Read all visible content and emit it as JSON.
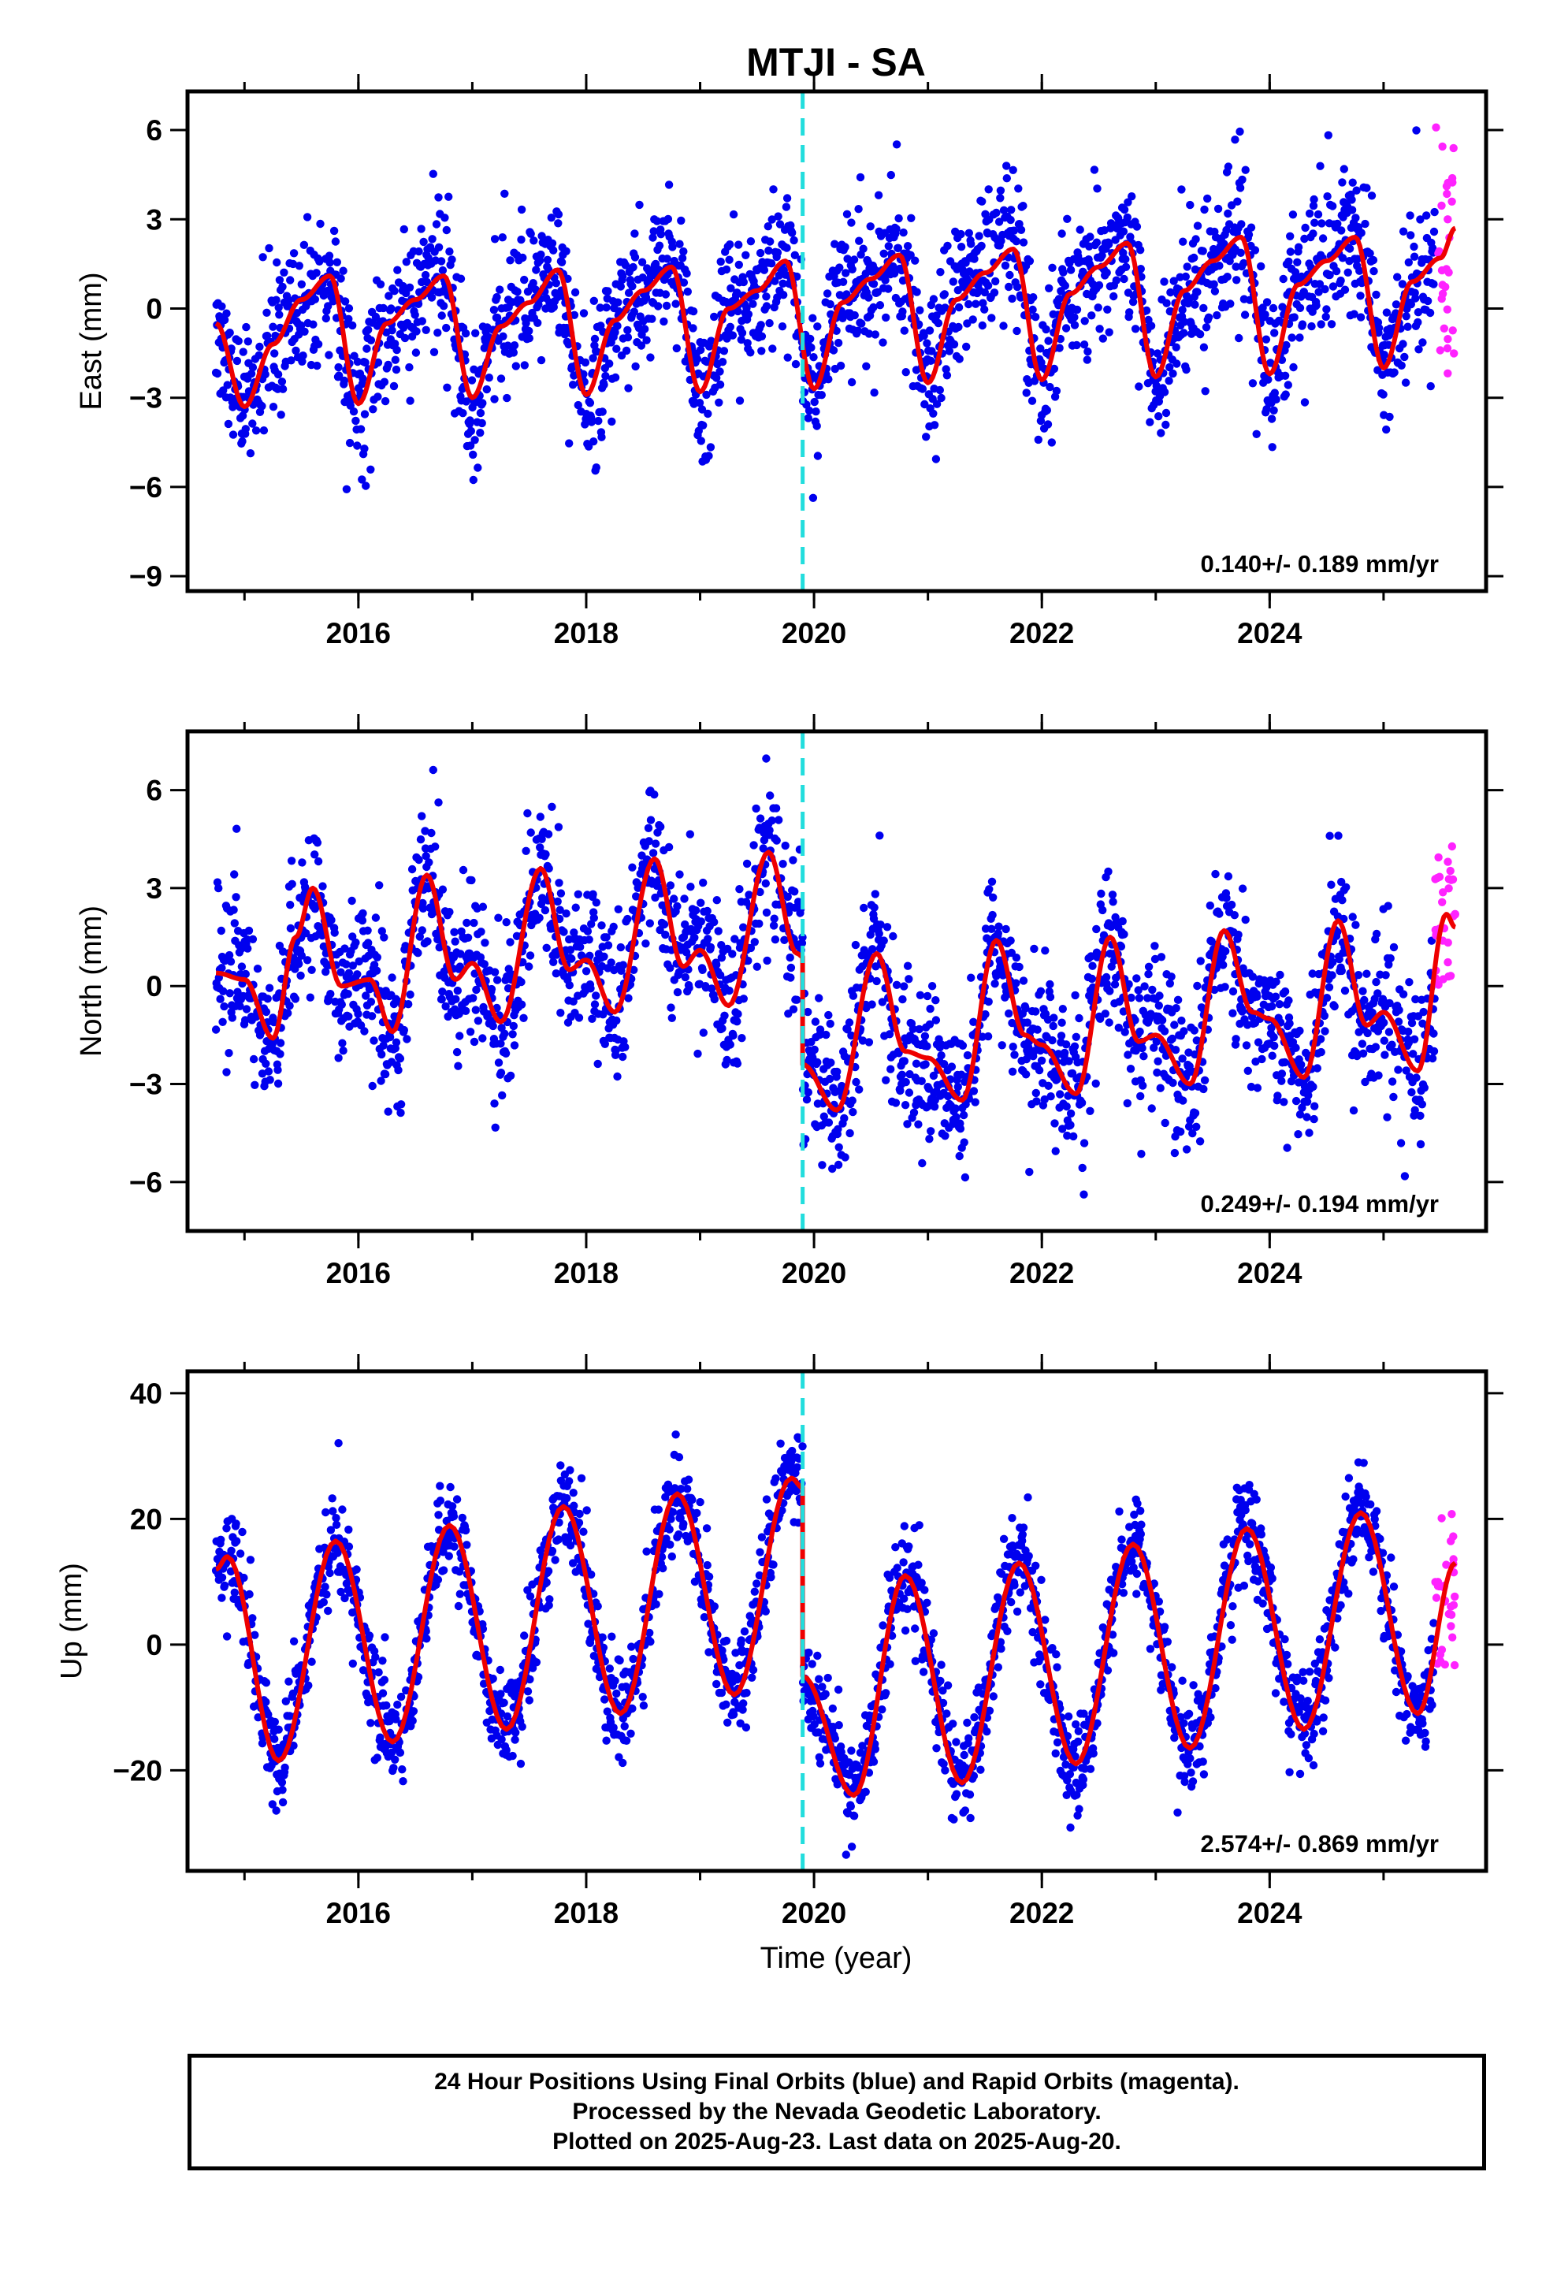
{
  "title": "MTJI - SA",
  "xlabel": "Time (year)",
  "caption": {
    "line1": "24 Hour Positions Using Final Orbits (blue) and Rapid Orbits (magenta).",
    "line2": "Processed by the Nevada Geodetic Laboratory.",
    "line3": "Plotted on 2025-Aug-23. Last data on 2025-Aug-20."
  },
  "colors": {
    "final_points": "#0000ee",
    "rapid_points": "#ff22ff",
    "model_line": "#ee0000",
    "event_line": "#22dddd",
    "frame": "#000000"
  },
  "chart_data": [
    {
      "type": "scatter",
      "ylabel": "East (mm)",
      "xlim": [
        2014.5,
        2025.9
      ],
      "ylim": [
        -9.5,
        7.3
      ],
      "xticks": [
        2016,
        2018,
        2020,
        2022,
        2024
      ],
      "xtick_labels": [
        "2016",
        "2018",
        "2020",
        "2022",
        "2024"
      ],
      "yticks": [
        -9,
        -6,
        -3,
        0,
        3,
        6
      ],
      "ytick_labels": [
        "−9",
        "−6",
        "−3",
        "0",
        "3",
        "6"
      ],
      "rate_label": "0.140+/- 0.189 mm/yr",
      "event_line_x": 2019.9,
      "series": [
        {
          "name": "Final Orbits",
          "color": "blue",
          "x_range": [
            2014.75,
            2025.45
          ],
          "scatter_sd": 1.6
        },
        {
          "name": "Rapid Orbits",
          "color": "magenta",
          "x_range": [
            2025.45,
            2025.63
          ],
          "y_range": [
            -2.6,
            6.2
          ]
        }
      ],
      "model_curve": {
        "x": [
          2014.75,
          2015.0,
          2015.25,
          2015.5,
          2015.75,
          2016.0,
          2016.25,
          2016.5,
          2016.75,
          2017.0,
          2017.25,
          2017.5,
          2017.75,
          2018.0,
          2018.25,
          2018.5,
          2018.75,
          2019.0,
          2019.25,
          2019.5,
          2019.75,
          2020.0,
          2020.25,
          2020.5,
          2020.75,
          2021.0,
          2021.25,
          2021.5,
          2021.75,
          2022.0,
          2022.25,
          2022.5,
          2022.75,
          2023.0,
          2023.25,
          2023.5,
          2023.75,
          2024.0,
          2024.25,
          2024.5,
          2024.75,
          2025.0,
          2025.25,
          2025.5,
          2025.63
        ],
        "y": [
          -0.5,
          -3.3,
          -1.2,
          0.3,
          1.1,
          -3.2,
          -0.5,
          0.3,
          1.1,
          -3.0,
          -0.6,
          0.2,
          1.3,
          -2.9,
          -0.4,
          0.6,
          1.4,
          -2.8,
          0.0,
          0.6,
          1.6,
          -2.7,
          0.2,
          1.0,
          1.8,
          -2.5,
          0.3,
          1.2,
          2.0,
          -2.4,
          0.5,
          1.4,
          2.2,
          -2.3,
          0.6,
          1.6,
          2.4,
          -2.2,
          0.8,
          1.6,
          2.4,
          -2.0,
          0.9,
          1.7,
          2.7
        ]
      }
    },
    {
      "type": "scatter",
      "ylabel": "North (mm)",
      "xlim": [
        2014.5,
        2025.9
      ],
      "ylim": [
        -7.5,
        7.8
      ],
      "xticks": [
        2016,
        2018,
        2020,
        2022,
        2024
      ],
      "xtick_labels": [
        "2016",
        "2018",
        "2020",
        "2022",
        "2024"
      ],
      "yticks": [
        -6,
        -3,
        0,
        3,
        6
      ],
      "ytick_labels": [
        "−6",
        "−3",
        "0",
        "3",
        "6"
      ],
      "rate_label": "0.249+/- 0.194 mm/yr",
      "event_line_x": 2019.9,
      "series": [
        {
          "name": "Final Orbits",
          "color": "blue",
          "x_range": [
            2014.75,
            2025.45
          ],
          "scatter_sd": 1.5
        },
        {
          "name": "Rapid Orbits",
          "color": "magenta",
          "x_range": [
            2025.45,
            2025.63
          ],
          "y_range": [
            -0.4,
            4.4
          ]
        }
      ],
      "model_curve": {
        "x": [
          2014.75,
          2015.0,
          2015.25,
          2015.45,
          2015.6,
          2015.85,
          2016.1,
          2016.3,
          2016.6,
          2016.85,
          2017.0,
          2017.25,
          2017.6,
          2017.85,
          2018.0,
          2018.25,
          2018.6,
          2018.85,
          2019.0,
          2019.25,
          2019.6,
          2019.85,
          2019.9,
          2019.9,
          2020.2,
          2020.55,
          2020.8,
          2021.0,
          2021.3,
          2021.6,
          2021.85,
          2022.0,
          2022.3,
          2022.6,
          2022.85,
          2023.0,
          2023.3,
          2023.6,
          2023.85,
          2024.0,
          2024.3,
          2024.6,
          2024.85,
          2025.0,
          2025.3,
          2025.55,
          2025.63
        ],
        "y": [
          0.4,
          0.2,
          -1.6,
          1.5,
          3.0,
          0.0,
          0.2,
          -1.4,
          3.4,
          0.2,
          0.7,
          -1.1,
          3.6,
          0.5,
          0.8,
          -0.8,
          3.9,
          0.6,
          1.1,
          -0.6,
          4.1,
          1.0,
          0.9,
          -2.4,
          -3.8,
          1.0,
          -2.0,
          -2.2,
          -3.5,
          1.4,
          -1.5,
          -1.8,
          -3.3,
          1.5,
          -1.7,
          -1.5,
          -3.0,
          1.7,
          -0.8,
          -1.0,
          -2.8,
          2.0,
          -1.2,
          -0.8,
          -2.6,
          2.2,
          1.8
        ]
      }
    },
    {
      "type": "scatter",
      "ylabel": "Up (mm)",
      "xlim": [
        2014.5,
        2025.9
      ],
      "ylim": [
        -36,
        43.5
      ],
      "xticks": [
        2016,
        2018,
        2020,
        2022,
        2024
      ],
      "xtick_labels": [
        "2016",
        "2018",
        "2020",
        "2022",
        "2024"
      ],
      "yticks": [
        -20,
        0,
        20,
        40
      ],
      "ytick_labels": [
        "−20",
        "0",
        "20",
        "40"
      ],
      "rate_label": "2.574+/- 0.869 mm/yr",
      "event_line_x": 2019.9,
      "series": [
        {
          "name": "Final Orbits",
          "color": "blue",
          "x_range": [
            2014.75,
            2025.45
          ],
          "scatter_sd": 5.0
        },
        {
          "name": "Rapid Orbits",
          "color": "magenta",
          "x_range": [
            2025.45,
            2025.63
          ],
          "y_range": [
            -4,
            21
          ]
        }
      ],
      "model_curve": {
        "x": [
          2014.75,
          2014.85,
          2015.3,
          2015.8,
          2016.3,
          2016.8,
          2017.3,
          2017.8,
          2018.3,
          2018.8,
          2019.3,
          2019.8,
          2019.9,
          2019.9,
          2020.35,
          2020.8,
          2021.3,
          2021.8,
          2022.3,
          2022.8,
          2023.3,
          2023.8,
          2024.3,
          2024.8,
          2025.3,
          2025.63
        ],
        "y": [
          12,
          14,
          -18.5,
          16.5,
          -15.5,
          19,
          -13.5,
          22,
          -11,
          24,
          -8,
          26.5,
          25,
          -5,
          -24,
          11,
          -22,
          13,
          -19,
          16,
          -16.5,
          18.5,
          -13.5,
          21,
          -11,
          13
        ]
      }
    }
  ]
}
